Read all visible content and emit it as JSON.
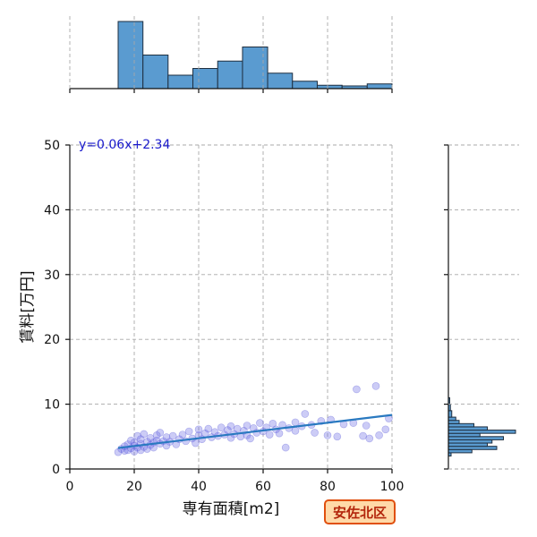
{
  "chart_data": {
    "type": "scatter",
    "xlabel": "専有面積[m2]",
    "ylabel": "賃料[万円]",
    "xlim": [
      0,
      100
    ],
    "ylim": [
      0,
      50
    ],
    "xticks": [
      "0",
      "20",
      "40",
      "60",
      "80",
      "100"
    ],
    "yticks": [
      "0",
      "10",
      "20",
      "30",
      "40",
      "50"
    ],
    "grid": true,
    "regression": {
      "label": "y=0.06x+2.34",
      "slope": 0.06,
      "intercept": 2.34,
      "x_range": [
        15,
        100
      ]
    },
    "points": [
      [
        15,
        2.6
      ],
      [
        16,
        3.1
      ],
      [
        17,
        2.8
      ],
      [
        17,
        3.5
      ],
      [
        18,
        2.9
      ],
      [
        18,
        3.8
      ],
      [
        19,
        3.2
      ],
      [
        19,
        4.4
      ],
      [
        20,
        2.7
      ],
      [
        20,
        3.6
      ],
      [
        20,
        4.1
      ],
      [
        21,
        3.3
      ],
      [
        21,
        5.1
      ],
      [
        22,
        3.9
      ],
      [
        22,
        2.9
      ],
      [
        22,
        4.6
      ],
      [
        23,
        3.4
      ],
      [
        23,
        5.4
      ],
      [
        24,
        4.2
      ],
      [
        24,
        3.1
      ],
      [
        25,
        3.7
      ],
      [
        25,
        4.8
      ],
      [
        26,
        4.1
      ],
      [
        26,
        3.3
      ],
      [
        27,
        5.2
      ],
      [
        27,
        4.4
      ],
      [
        28,
        3.9
      ],
      [
        28,
        5.6
      ],
      [
        29,
        4.3
      ],
      [
        30,
        4.9
      ],
      [
        30,
        3.6
      ],
      [
        31,
        4.2
      ],
      [
        32,
        5.1
      ],
      [
        33,
        3.8
      ],
      [
        34,
        4.6
      ],
      [
        35,
        5.3
      ],
      [
        36,
        4.3
      ],
      [
        37,
        5.8
      ],
      [
        38,
        4.7
      ],
      [
        39,
        4.0
      ],
      [
        40,
        5.2
      ],
      [
        40,
        6.1
      ],
      [
        41,
        4.6
      ],
      [
        42,
        5.5
      ],
      [
        43,
        6.2
      ],
      [
        44,
        4.9
      ],
      [
        45,
        5.7
      ],
      [
        46,
        5.1
      ],
      [
        47,
        6.4
      ],
      [
        48,
        5.3
      ],
      [
        49,
        6.0
      ],
      [
        50,
        4.8
      ],
      [
        50,
        6.6
      ],
      [
        51,
        5.4
      ],
      [
        52,
        6.2
      ],
      [
        53,
        5.0
      ],
      [
        54,
        5.9
      ],
      [
        55,
        6.7
      ],
      [
        55,
        5.2
      ],
      [
        56,
        4.7
      ],
      [
        57,
        6.3
      ],
      [
        58,
        5.6
      ],
      [
        59,
        7.1
      ],
      [
        60,
        5.8
      ],
      [
        61,
        6.4
      ],
      [
        62,
        5.3
      ],
      [
        63,
        7.0
      ],
      [
        64,
        6.1
      ],
      [
        65,
        5.5
      ],
      [
        66,
        6.8
      ],
      [
        67,
        3.3
      ],
      [
        68,
        6.3
      ],
      [
        70,
        7.2
      ],
      [
        70,
        5.9
      ],
      [
        72,
        6.6
      ],
      [
        73,
        8.5
      ],
      [
        75,
        6.8
      ],
      [
        76,
        5.6
      ],
      [
        78,
        7.4
      ],
      [
        80,
        5.2
      ],
      [
        81,
        7.6
      ],
      [
        83,
        5.0
      ],
      [
        85,
        6.9
      ],
      [
        88,
        7.1
      ],
      [
        89,
        12.3
      ],
      [
        91,
        5.1
      ],
      [
        92,
        6.7
      ],
      [
        93,
        4.7
      ],
      [
        95,
        12.8
      ],
      [
        96,
        5.2
      ],
      [
        98,
        6.1
      ],
      [
        99,
        7.8
      ]
    ],
    "marginal_x": {
      "bin_edges": [
        15,
        22.7,
        30.5,
        38.2,
        45.9,
        53.6,
        61.4,
        69.1,
        76.8,
        84.5,
        92.3,
        100
      ],
      "heights": [
        1.0,
        0.5,
        0.2,
        0.3,
        0.41,
        0.62,
        0.23,
        0.11,
        0.05,
        0.04,
        0.07
      ]
    },
    "marginal_y": {
      "bin_edges": [
        2.0,
        2.5,
        3.0,
        3.5,
        4.0,
        4.5,
        5.0,
        5.5,
        6.0,
        6.5,
        7.0,
        7.5,
        8.0,
        9.0,
        10.0,
        11.0
      ],
      "widths": [
        0.04,
        0.35,
        0.72,
        0.58,
        0.65,
        0.82,
        0.47,
        1.0,
        0.58,
        0.38,
        0.16,
        0.11,
        0.05,
        0.03,
        0.02
      ]
    }
  },
  "region_badge": "安佐北区"
}
